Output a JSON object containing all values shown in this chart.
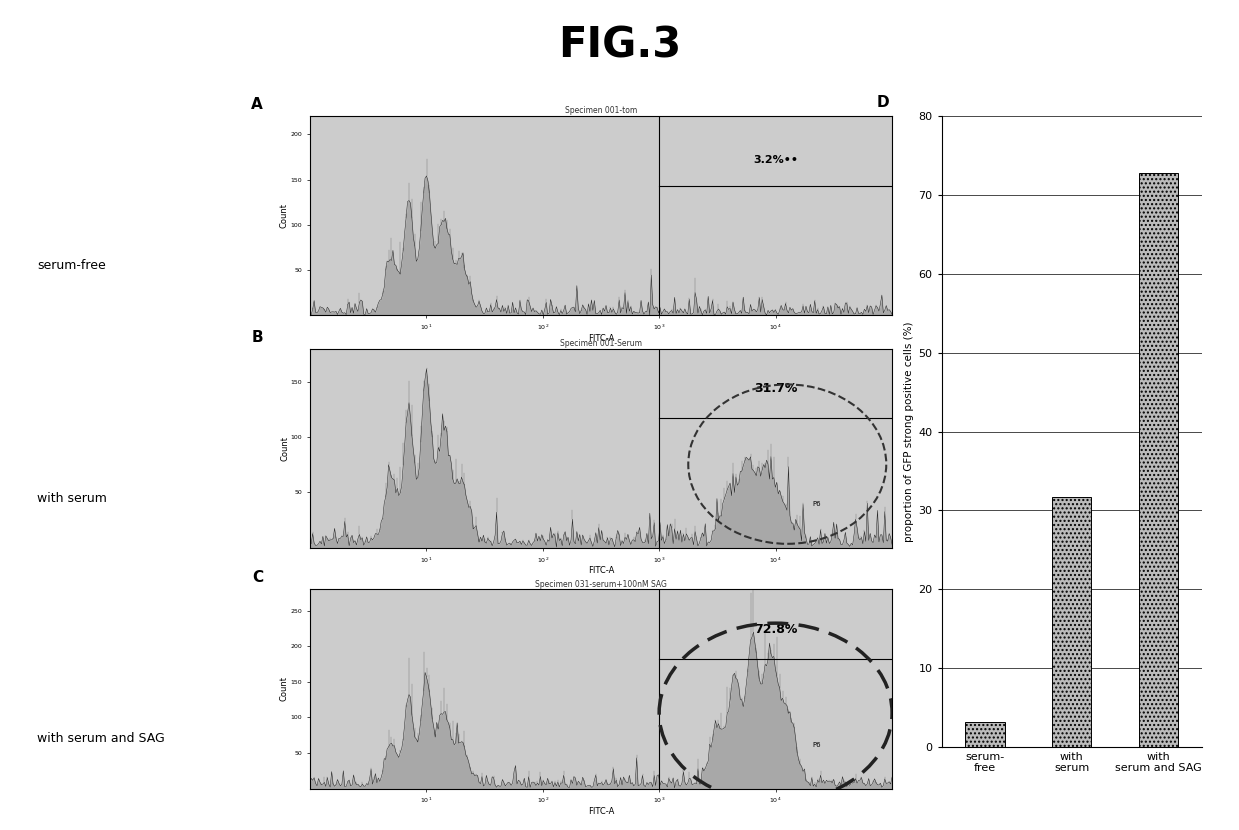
{
  "title": "FIG.3",
  "title_fontsize": 30,
  "panel_labels": [
    "A",
    "B",
    "C",
    "D"
  ],
  "flow_titles": [
    "Specimen 001-tom",
    "Specimen 001-Serum",
    "Specimen 031-serum+100nM SAG"
  ],
  "flow_percentages": [
    "3.2%••",
    "31.7%",
    "72.8%"
  ],
  "left_labels": [
    "serum-free",
    "with serum",
    "with serum and SAG"
  ],
  "bar_categories": [
    "serum-\nfree",
    "with\nserum",
    "with\nserum and SAG"
  ],
  "bar_values": [
    3.2,
    31.7,
    72.8
  ],
  "ylabel": "proportion of GFP strong positive cells (%)",
  "ylim": [
    0,
    80
  ],
  "yticks": [
    0,
    10,
    20,
    30,
    40,
    50,
    60,
    70,
    80
  ],
  "background_color": "#ffffff"
}
